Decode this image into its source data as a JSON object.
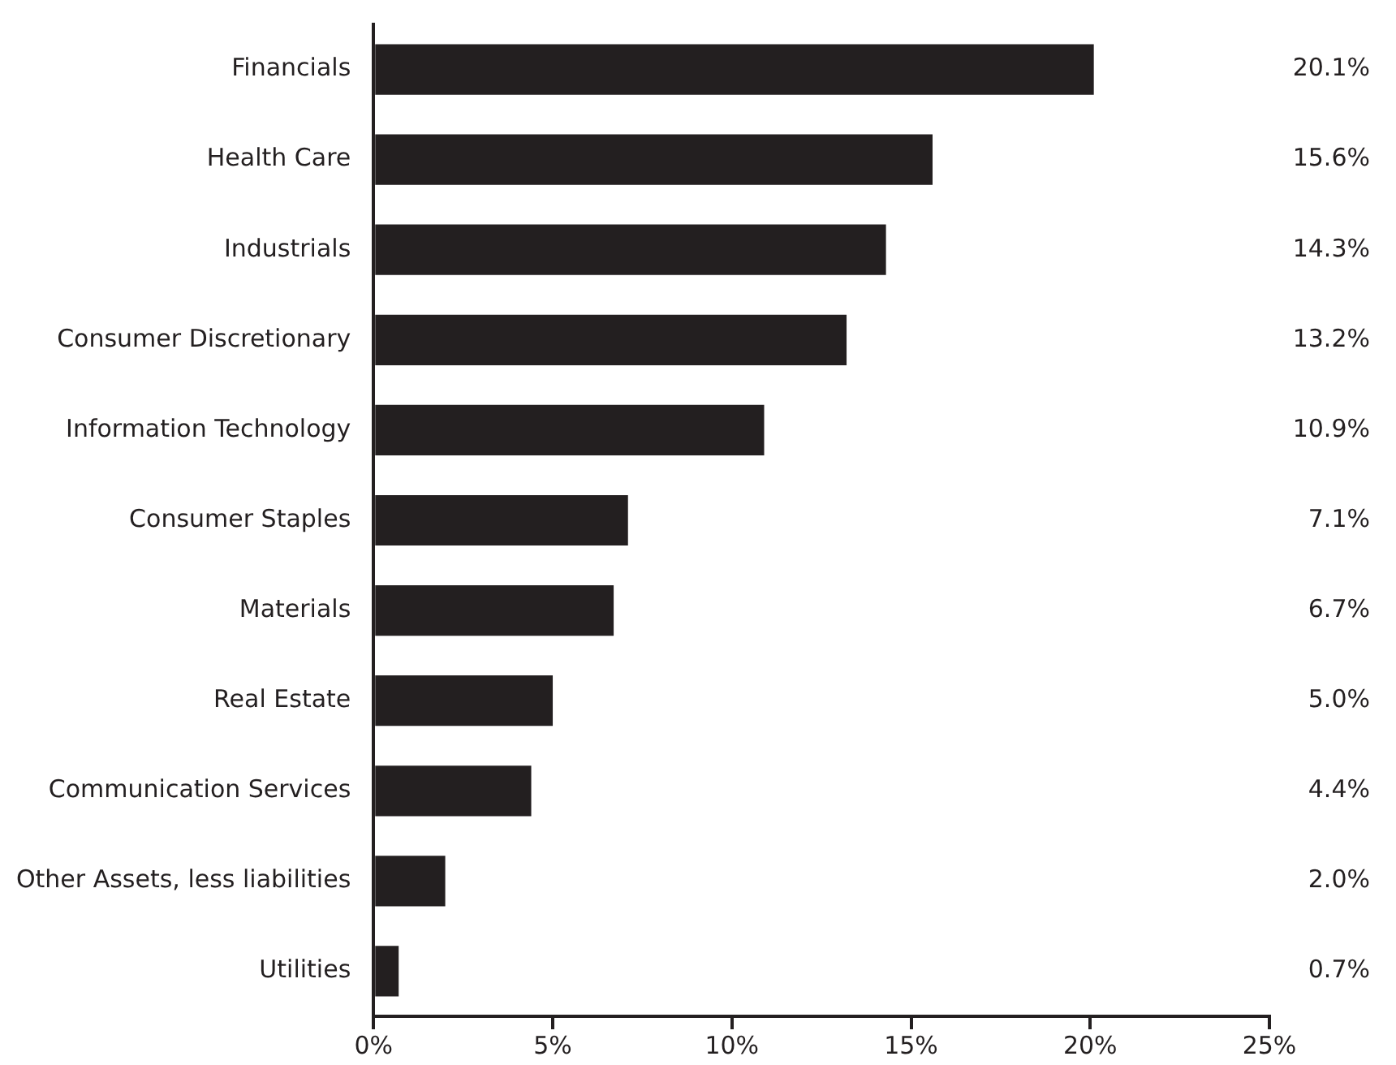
{
  "chart_data": {
    "type": "bar",
    "orientation": "horizontal",
    "categories": [
      "Financials",
      "Health Care",
      "Industrials",
      "Consumer Discretionary",
      "Information Technology",
      "Consumer Staples",
      "Materials",
      "Real Estate",
      "Communication Services",
      "Other Assets, less liabilities",
      "Utilities"
    ],
    "values": [
      20.1,
      15.6,
      14.3,
      13.2,
      10.9,
      7.1,
      6.7,
      5.0,
      4.4,
      2.0,
      0.7
    ],
    "value_labels": [
      "20.1%",
      "15.6%",
      "14.3%",
      "13.2%",
      "10.9%",
      "7.1%",
      "6.7%",
      "5.0%",
      "4.4%",
      "2.0%",
      "0.7%"
    ],
    "color": "#231f20",
    "xlim": [
      0,
      25
    ],
    "xticks": [
      {
        "value": 0,
        "label": "0%"
      },
      {
        "value": 5,
        "label": "5%"
      },
      {
        "value": 10,
        "label": "10%"
      },
      {
        "value": 15,
        "label": "15%"
      },
      {
        "value": 20,
        "label": "20%"
      },
      {
        "value": 25,
        "label": "25%"
      }
    ],
    "grid": false,
    "legend": false
  }
}
